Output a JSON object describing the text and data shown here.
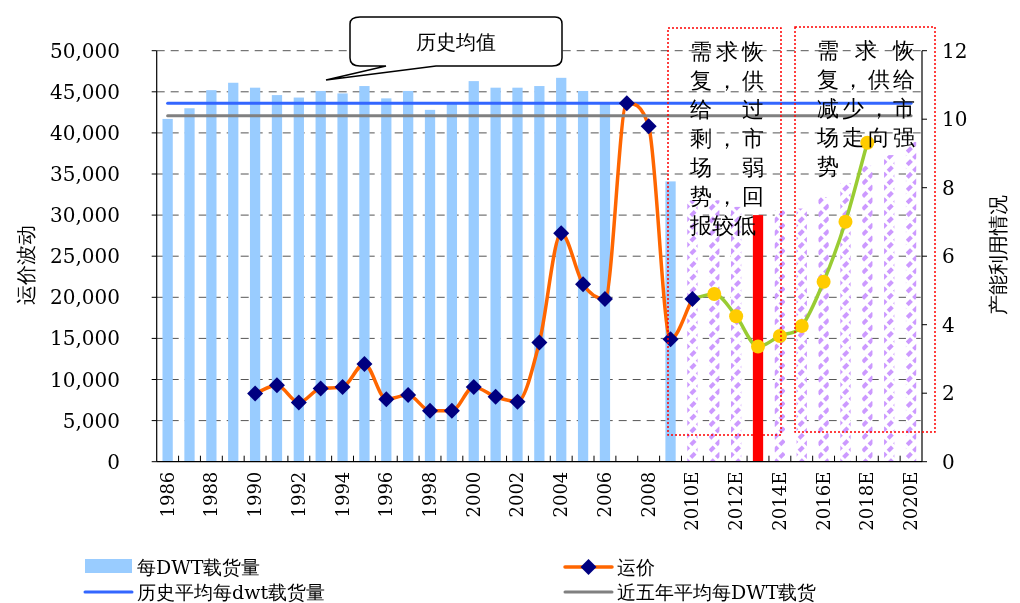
{
  "chart_data": {
    "type": "bar",
    "categories": [
      "1986",
      null,
      "1988",
      null,
      "1990",
      null,
      "1992",
      null,
      "1994",
      null,
      "1996",
      null,
      "1998",
      null,
      "2000",
      null,
      "2002",
      null,
      "2004",
      null,
      "2006",
      null,
      "2008",
      null,
      "2010E",
      null,
      "2012E",
      null,
      "2014E",
      null,
      "2016E",
      null,
      "2018E",
      null,
      "2020E"
    ],
    "series": [
      {
        "name": "每DWT载货量",
        "color": "#99ccff",
        "values": [
          41700,
          43000,
          45200,
          46100,
          45500,
          44600,
          44300,
          45100,
          44800,
          45700,
          44200,
          45100,
          42800,
          43600,
          46300,
          45500,
          45500,
          45700,
          46700,
          45100,
          43600,
          null,
          null,
          34100,
          null,
          null,
          null,
          null,
          null,
          null,
          null,
          null,
          null,
          null,
          null
        ]
      },
      {
        "color": "#cc99ff",
        "line_style": "dashed",
        "values": [
          null,
          null,
          null,
          null,
          null,
          null,
          null,
          null,
          null,
          null,
          null,
          null,
          null,
          null,
          null,
          null,
          null,
          null,
          null,
          null,
          null,
          null,
          null,
          null,
          31800,
          31800,
          31000,
          null,
          30600,
          30800,
          32200,
          33900,
          36000,
          37300,
          38900
        ]
      },
      {
        "color": "#ff0000",
        "values": [
          null,
          null,
          null,
          null,
          null,
          null,
          null,
          null,
          null,
          null,
          null,
          null,
          null,
          null,
          null,
          null,
          null,
          null,
          null,
          null,
          null,
          null,
          null,
          null,
          null,
          null,
          null,
          30000,
          null,
          null,
          null,
          null,
          null,
          null,
          null
        ]
      },
      {
        "name": "历史平均每dwt载货量",
        "type": "line",
        "color": "#3366ff",
        "values": [
          43600,
          43600,
          43600,
          43600,
          43600,
          43600,
          43600,
          43600,
          43600,
          43600,
          43600,
          43600,
          43600,
          43600,
          43600,
          43600,
          43600,
          43600,
          43600,
          43600,
          43600,
          43600,
          43600,
          43600,
          43600,
          43600,
          43600,
          43600,
          43600,
          43600,
          43600,
          43600,
          43600,
          43600,
          43600
        ]
      },
      {
        "type": "line",
        "color": "#99cc33",
        "marker": "circle",
        "colors": [
          null,
          null,
          null,
          null,
          null,
          null,
          null,
          null,
          null,
          null,
          null,
          null,
          null,
          null,
          null,
          null,
          null,
          null,
          null,
          null,
          null,
          null,
          null,
          null,
          null,
          "#ffcc00",
          "#ffcc00",
          "#ffcc00",
          "#ffcc00",
          "#ffcc00",
          "#ffcc00",
          "#ffcc00",
          "#ffcc00",
          null,
          null
        ],
        "values": [
          null,
          null,
          null,
          null,
          null,
          null,
          null,
          null,
          null,
          null,
          null,
          null,
          null,
          null,
          null,
          null,
          null,
          null,
          null,
          null,
          null,
          null,
          null,
          null,
          19800,
          20400,
          17700,
          14000,
          15300,
          16500,
          21900,
          29200,
          38800,
          null,
          null
        ]
      },
      {
        "name": "运价",
        "type": "line",
        "color": "#ff6600",
        "marker": "diamond",
        "colors": [
          null,
          null,
          null,
          null,
          "#000080",
          "#000080",
          "#000080",
          "#000080",
          "#000080",
          "#000080",
          "#000080",
          "#000080",
          "#000080",
          "#000080",
          "#000080",
          "#000080",
          "#000080",
          "#000080",
          "#000080",
          "#000080",
          "#000080",
          "#000080",
          "#000080",
          "#000080",
          "#000080",
          null,
          null,
          null,
          null,
          null,
          null,
          null,
          null,
          null,
          null
        ],
        "values": [
          null,
          null,
          null,
          null,
          8300,
          9300,
          7200,
          8900,
          9100,
          11900,
          7600,
          8100,
          6200,
          6200,
          9100,
          7900,
          7300,
          14500,
          27800,
          21600,
          19800,
          43600,
          40800,
          14900,
          19800,
          null,
          null,
          null,
          null,
          null,
          null,
          null,
          null,
          null,
          null
        ]
      },
      {
        "name": "近五年平均每DWT载货",
        "type": "line",
        "color": "#808080",
        "values": [
          42100,
          42100,
          42100,
          42100,
          42100,
          42100,
          42100,
          42100,
          42100,
          42100,
          42100,
          42100,
          42100,
          42100,
          42100,
          42100,
          42100,
          42100,
          42100,
          42100,
          42100,
          42100,
          42100,
          42100,
          42100,
          42100,
          42100,
          42100,
          42100,
          42100,
          42100,
          42100,
          42100,
          42100,
          42100
        ]
      }
    ],
    "ylabel": "运价波动",
    "y2label": "产能利用情况",
    "ylim": [
      0,
      50000
    ],
    "yticks": [
      0,
      {
        "value": 5000,
        "label": "5,000"
      },
      {
        "value": 10000,
        "label": "10,000"
      },
      {
        "value": 15000,
        "label": "15,000"
      },
      {
        "value": 20000,
        "label": "20,000"
      },
      {
        "value": 25000,
        "label": "25,000"
      },
      {
        "value": 30000,
        "label": "30,000"
      },
      {
        "value": 35000,
        "label": "35,000"
      },
      {
        "value": 40000,
        "label": "40,000"
      },
      {
        "value": 45000,
        "label": "45,000"
      },
      {
        "value": 50000,
        "label": "50,000"
      }
    ],
    "y2lim": [
      0,
      12
    ],
    "y2ticks": [
      0,
      2,
      4,
      6,
      8,
      10,
      12
    ],
    "grid": "y",
    "legend": "bottom",
    "annotations": [
      "历史均值",
      "需求恢复，供给过剩，市场弱势，回报较低",
      "需求恢复，供给减少，市场走向强势"
    ]
  }
}
